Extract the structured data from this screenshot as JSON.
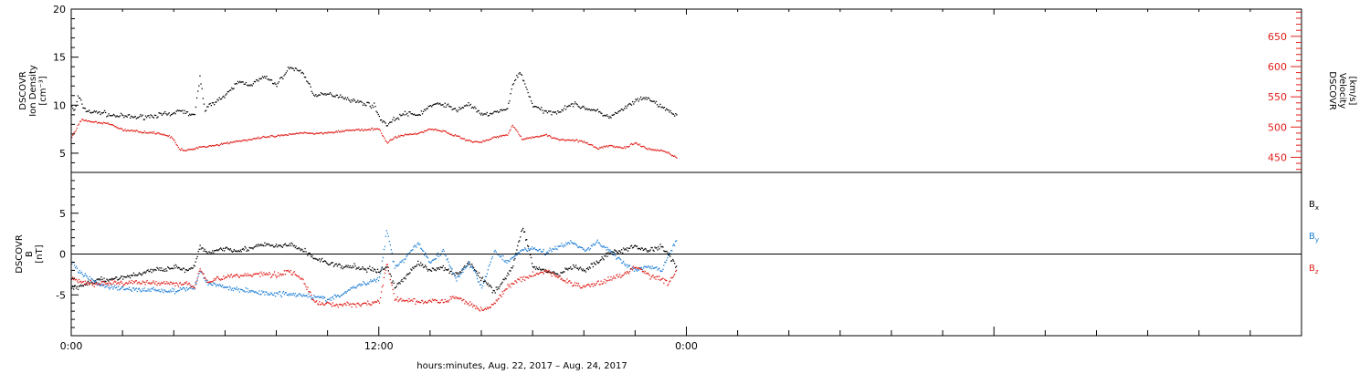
{
  "chart_data": [
    {
      "type": "scatter",
      "panel": "plasma",
      "ylabel_left": [
        "DSCOVR",
        "Ion Density",
        "[cm⁻³]"
      ],
      "ylabel_right": [
        "DSCOVR",
        "Velocity",
        "[km/s]"
      ],
      "ylim_left": [
        3,
        20
      ],
      "yticks_left": [
        5,
        10,
        15,
        20
      ],
      "ylim_right": [
        425,
        695
      ],
      "yticks_right": [
        450,
        500,
        550,
        600,
        650
      ],
      "colors": {
        "density": "#000000",
        "velocity": "#e0201b"
      },
      "series": [
        {
          "key": "density",
          "axis": "left",
          "color": "#000000",
          "x": [
            0.0,
            0.1,
            0.25,
            0.5,
            0.8,
            1.2,
            1.5,
            2.0,
            2.5,
            3.0,
            3.3,
            3.6,
            3.9,
            4.2,
            4.5,
            4.8,
            5.0,
            5.2,
            5.6,
            6.0,
            6.5,
            7.0,
            7.5,
            8.0,
            8.5,
            9.0,
            9.5,
            10.0,
            10.5,
            11.0,
            11.5,
            11.8,
            12.0,
            12.3,
            12.6,
            13.0,
            13.5,
            14.0,
            14.5,
            15.0,
            15.5,
            16.0,
            16.5,
            17.0,
            17.2,
            17.5,
            18.0,
            18.5,
            19.0,
            19.5,
            20.0,
            20.5,
            21.0,
            21.5,
            22.0,
            22.5,
            23.0,
            23.3,
            23.6
          ],
          "y": [
            10.0,
            9.3,
            11.0,
            9.6,
            9.3,
            9.3,
            9.0,
            8.9,
            8.8,
            8.9,
            9.0,
            9.1,
            9.0,
            9.6,
            9.2,
            9.0,
            13.0,
            9.6,
            10.5,
            11.0,
            12.5,
            12.2,
            13.0,
            12.2,
            14.0,
            13.5,
            11.0,
            11.2,
            11.0,
            10.5,
            10.2,
            10.0,
            8.8,
            8.0,
            8.6,
            9.2,
            9.0,
            10.0,
            10.2,
            9.5,
            10.2,
            9.0,
            9.3,
            9.6,
            12.3,
            13.5,
            10.0,
            9.3,
            9.4,
            10.2,
            9.8,
            9.4,
            8.8,
            9.6,
            10.5,
            10.8,
            9.8,
            9.5,
            8.9
          ]
        },
        {
          "key": "velocity",
          "axis": "right",
          "color": "#e0201b",
          "x": [
            0.0,
            0.2,
            0.4,
            0.7,
            1.0,
            1.5,
            2.0,
            2.5,
            3.0,
            3.5,
            3.9,
            4.2,
            4.5,
            5.0,
            5.5,
            6.0,
            6.5,
            7.0,
            7.5,
            8.0,
            8.5,
            9.0,
            9.5,
            10.0,
            10.5,
            11.0,
            11.5,
            12.0,
            12.3,
            12.6,
            13.0,
            13.5,
            14.0,
            14.5,
            15.0,
            15.5,
            16.0,
            16.5,
            17.0,
            17.2,
            17.6,
            18.0,
            18.5,
            19.0,
            19.5,
            20.0,
            20.5,
            21.0,
            21.5,
            22.0,
            22.5,
            23.0,
            23.3,
            23.6
          ],
          "y": [
            484,
            500,
            514,
            510,
            508,
            506,
            496,
            494,
            492,
            490,
            484,
            464,
            462,
            468,
            470,
            474,
            478,
            480,
            484,
            486,
            488,
            492,
            490,
            492,
            494,
            496,
            496,
            498,
            474,
            484,
            488,
            490,
            498,
            494,
            486,
            478,
            476,
            484,
            488,
            505,
            480,
            484,
            488,
            480,
            480,
            476,
            466,
            470,
            466,
            474,
            464,
            462,
            458,
            450
          ]
        }
      ]
    },
    {
      "type": "scatter",
      "panel": "magnetic-field",
      "ylabel_left": [
        "DSCOVR",
        "B",
        "[nT]"
      ],
      "ylim": [
        -10,
        10
      ],
      "yticks": [
        -5,
        0,
        5
      ],
      "zero_line": true,
      "legend": "right",
      "series": [
        {
          "name": "Bx",
          "color": "#000000",
          "x": [
            0.0,
            0.3,
            0.6,
            1.0,
            1.5,
            2.0,
            2.5,
            3.0,
            3.5,
            4.0,
            4.5,
            4.8,
            5.0,
            5.3,
            5.6,
            6.0,
            6.5,
            7.0,
            7.5,
            8.0,
            8.5,
            9.0,
            9.5,
            10.0,
            10.5,
            11.0,
            11.5,
            12.0,
            12.3,
            12.6,
            13.0,
            13.5,
            14.0,
            14.5,
            15.0,
            15.5,
            16.0,
            16.5,
            17.0,
            17.2,
            17.6,
            18.0,
            18.5,
            19.0,
            19.5,
            20.0,
            20.5,
            21.0,
            21.5,
            22.0,
            22.5,
            23.0,
            23.3,
            23.6
          ],
          "y": [
            -4.0,
            -4.0,
            -3.5,
            -3.2,
            -3.0,
            -2.8,
            -2.5,
            -2.0,
            -1.8,
            -1.5,
            -2.0,
            -1.5,
            1.0,
            0.2,
            0.5,
            0.8,
            0.5,
            0.8,
            1.2,
            1.0,
            1.2,
            0.6,
            -0.5,
            -1.0,
            -1.5,
            -1.5,
            -1.8,
            -2.0,
            -1.5,
            -4.0,
            -2.8,
            -1.0,
            -2.0,
            -1.5,
            -2.5,
            -1.0,
            -3.0,
            -4.5,
            -2.5,
            -1.5,
            3.5,
            -1.5,
            -2.0,
            -2.5,
            -1.5,
            -2.0,
            -1.0,
            0.2,
            0.5,
            1.0,
            0.5,
            1.0,
            0.0,
            -1.5
          ]
        },
        {
          "name": "By",
          "color": "#1f7fd6",
          "x": [
            0.0,
            0.3,
            0.6,
            1.0,
            1.5,
            2.0,
            2.5,
            3.0,
            3.5,
            4.0,
            4.5,
            4.8,
            5.0,
            5.3,
            5.6,
            6.0,
            6.5,
            7.0,
            7.5,
            8.0,
            8.5,
            9.0,
            9.5,
            10.0,
            10.5,
            11.0,
            11.5,
            12.0,
            12.3,
            12.6,
            13.0,
            13.5,
            14.0,
            14.5,
            15.0,
            15.5,
            16.0,
            16.5,
            17.0,
            17.5,
            18.0,
            18.5,
            19.0,
            19.5,
            20.0,
            20.5,
            21.0,
            21.5,
            22.0,
            22.5,
            23.0,
            23.3,
            23.6
          ],
          "y": [
            -1.0,
            -2.0,
            -2.8,
            -3.5,
            -4.0,
            -4.2,
            -4.3,
            -4.3,
            -4.4,
            -4.5,
            -4.2,
            -4.0,
            -2.0,
            -3.5,
            -3.6,
            -4.0,
            -4.3,
            -4.5,
            -4.7,
            -4.8,
            -4.8,
            -4.9,
            -5.2,
            -5.5,
            -5.0,
            -4.0,
            -3.5,
            -3.0,
            3.0,
            -1.5,
            -0.5,
            1.5,
            -1.0,
            0.5,
            -3.0,
            -1.0,
            -4.0,
            0.5,
            -1.0,
            0.5,
            0.8,
            0.2,
            1.0,
            1.5,
            0.5,
            1.5,
            0.5,
            -1.0,
            -2.0,
            -1.5,
            -2.0,
            0.0,
            1.8
          ]
        },
        {
          "name": "Bz",
          "color": "#e0201b",
          "x": [
            0.0,
            0.3,
            0.6,
            1.0,
            1.5,
            2.0,
            2.5,
            3.0,
            3.5,
            4.0,
            4.5,
            4.8,
            5.0,
            5.3,
            5.6,
            6.0,
            6.5,
            7.0,
            7.5,
            8.0,
            8.5,
            9.0,
            9.5,
            10.0,
            10.5,
            11.0,
            11.5,
            12.0,
            12.3,
            12.6,
            13.0,
            13.5,
            14.0,
            14.5,
            15.0,
            15.5,
            16.0,
            16.5,
            17.0,
            17.5,
            18.0,
            18.5,
            19.0,
            19.5,
            20.0,
            20.5,
            21.0,
            21.5,
            22.0,
            22.5,
            23.0,
            23.3,
            23.6
          ],
          "y": [
            -3.0,
            -3.3,
            -3.5,
            -3.6,
            -3.4,
            -3.5,
            -3.4,
            -3.5,
            -3.4,
            -3.6,
            -3.5,
            -4.0,
            -1.5,
            -3.5,
            -3.0,
            -2.8,
            -2.5,
            -2.5,
            -2.3,
            -2.5,
            -2.0,
            -3.0,
            -6.0,
            -6.0,
            -6.2,
            -6.1,
            -6.0,
            -5.8,
            -1.0,
            -5.5,
            -5.6,
            -5.8,
            -5.7,
            -5.8,
            -5.2,
            -6.0,
            -6.8,
            -6.0,
            -4.0,
            -3.0,
            -2.5,
            -2.0,
            -2.8,
            -3.5,
            -4.0,
            -3.5,
            -3.0,
            -2.5,
            -1.5,
            -2.5,
            -3.0,
            -3.5,
            -2.0
          ]
        }
      ],
      "legend_labels": [
        {
          "base": "B",
          "sub": "x",
          "color": "#000000"
        },
        {
          "base": "B",
          "sub": "y",
          "color": "#1f7fd6"
        },
        {
          "base": "B",
          "sub": "z",
          "color": "#e0201b"
        }
      ]
    }
  ],
  "xaxis": {
    "label": "hours:minutes, Aug. 22, 2017 – Aug. 24, 2017",
    "range_hours": [
      0,
      48
    ],
    "tick_labels": [
      {
        "hour": 0,
        "text": "0:00"
      },
      {
        "hour": 12,
        "text": "12:00"
      },
      {
        "hour": 24,
        "text": "0:00"
      }
    ]
  }
}
